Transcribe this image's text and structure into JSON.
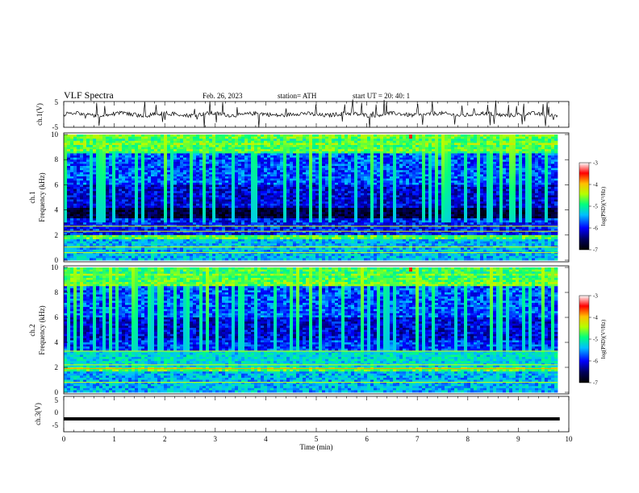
{
  "header": {
    "title": "VLF  Spectra",
    "date": "Feb. 26, 2023",
    "station": "station= ATH",
    "start": "start  UT  =    20: 40: 1"
  },
  "colorbar": {
    "label": "log(PSD)(V²/Hz)",
    "ticks": [
      -3,
      -4,
      -5,
      -6,
      -7
    ],
    "colormap": [
      "#000000",
      "#00005a",
      "#0000ff",
      "#00bfff",
      "#00ff7f",
      "#b4ff00",
      "#ffbf00",
      "#ff0000",
      "#ffffff"
    ]
  },
  "chart_data": [
    {
      "type": "line",
      "panel": "ch1",
      "ylabel": "ch.1(V)",
      "ylim": [
        -5,
        5
      ],
      "yticks": [
        "5",
        "-5"
      ],
      "xlim": [
        0,
        10
      ],
      "description": "noisy time series around 0 V with sferic spikes"
    },
    {
      "type": "heatmap",
      "panel": "ch1-spectrogram",
      "ylabel_channel": "ch.1",
      "ylabel": "Frequency (kHz)",
      "ylim": [
        0,
        10
      ],
      "yticks": [
        "0",
        "2",
        "4",
        "6",
        "8",
        "10"
      ],
      "xlim": [
        0,
        10
      ],
      "clim": [
        -7,
        -3
      ],
      "zlabel": "log(PSD)(V²/Hz)"
    },
    {
      "type": "heatmap",
      "panel": "ch2-spectrogram",
      "ylabel_channel": "ch.2",
      "ylabel": "Frequency (kHz)",
      "ylim": [
        0,
        10
      ],
      "yticks": [
        "0",
        "2",
        "4",
        "6",
        "8",
        "10"
      ],
      "xlim": [
        0,
        10
      ],
      "clim": [
        -7,
        -3
      ],
      "zlabel": "log(PSD)(V²/Hz)"
    },
    {
      "type": "line",
      "panel": "ch3",
      "ylabel": "ch.3(V)",
      "ylim": [
        -5,
        5
      ],
      "yticks": [
        "5",
        "0",
        "-5"
      ],
      "xlim": [
        0,
        10
      ],
      "xticks": [
        "0",
        "1",
        "2",
        "3",
        "4",
        "5",
        "6",
        "7",
        "8",
        "9",
        "10"
      ],
      "xlabel": "Time  (min)",
      "values": [
        -2,
        -2
      ],
      "x": [
        0,
        9.82
      ]
    }
  ]
}
